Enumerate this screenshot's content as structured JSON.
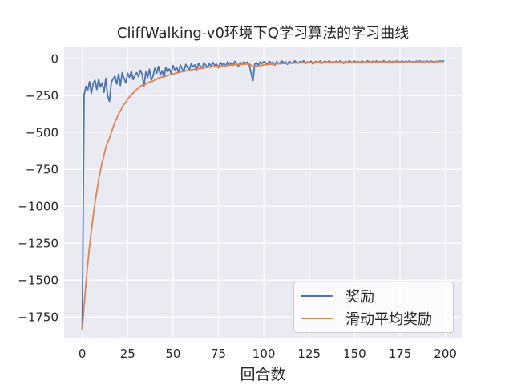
{
  "chart_data": {
    "type": "line",
    "title": "CliffWalking-v0环境下Q学习算法的学习曲线",
    "xlabel": "回合数",
    "ylabel": "",
    "grid": true,
    "legend_position": "lower right",
    "plot_background": "#eaeaf2",
    "grid_color": "#ffffff",
    "text_color": "#262626",
    "xlim": [
      -10,
      209
    ],
    "ylim": [
      -1890,
      77
    ],
    "x_ticks": [
      0,
      25,
      50,
      75,
      100,
      125,
      150,
      175,
      200
    ],
    "x_tick_labels": [
      "0",
      "25",
      "50",
      "75",
      "100",
      "125",
      "150",
      "175",
      "200"
    ],
    "y_ticks": [
      0,
      -250,
      -500,
      -750,
      -1000,
      -1250,
      -1500,
      -1750
    ],
    "y_tick_labels": [
      "0",
      "−250",
      "−500",
      "−750",
      "−1000",
      "−1250",
      "−1500",
      "−1750"
    ],
    "x_is_episode_index_starting_at_0": true,
    "series": [
      {
        "name": "奖励",
        "color": "#4c72b0",
        "values": [
          -1835,
          -247,
          -188,
          -215,
          -156,
          -235,
          -170,
          -146,
          -209,
          -139,
          -192,
          -163,
          -228,
          -133,
          -254,
          -290,
          -161,
          -136,
          -118,
          -172,
          -104,
          -182,
          -95,
          -134,
          -164,
          -99,
          -127,
          -86,
          -141,
          -112,
          -95,
          -122,
          -78,
          -106,
          -189,
          -90,
          -128,
          -72,
          -145,
          -117,
          -64,
          -98,
          -52,
          -110,
          -81,
          -126,
          -58,
          -89,
          -70,
          -102,
          -47,
          -76,
          -58,
          -92,
          -43,
          -68,
          -85,
          -39,
          -61,
          -74,
          -35,
          -55,
          -42,
          -78,
          -31,
          -49,
          -66,
          -28,
          -44,
          -58,
          -33,
          -52,
          -26,
          -47,
          -38,
          -62,
          -24,
          -41,
          -30,
          -54,
          -22,
          -37,
          -28,
          -45,
          -19,
          -34,
          -51,
          -25,
          -39,
          -21,
          -30,
          -24,
          -42,
          -98,
          -148,
          -36,
          -27,
          -45,
          -22,
          -33,
          -19,
          -28,
          -39,
          -17,
          -31,
          -24,
          -44,
          -20,
          -35,
          -26,
          -16,
          -29,
          -22,
          -38,
          -18,
          -27,
          -33,
          -15,
          -24,
          -30,
          -19,
          -26,
          -14,
          -32,
          -21,
          -28,
          -17,
          -36,
          -23,
          -19,
          -27,
          -15,
          -31,
          -22,
          -18,
          -26,
          -14,
          -29,
          -20,
          -24,
          -17,
          -28,
          -15,
          -23,
          -32,
          -18,
          -25,
          -14,
          -21,
          -27,
          -16,
          -24,
          -19,
          -29,
          -15,
          -22,
          -26,
          -14,
          -20,
          -25,
          -17,
          -23,
          -15,
          -27,
          -19,
          -24,
          -14,
          -21,
          -28,
          -16,
          -22,
          -18,
          -25,
          -15,
          -20,
          -26,
          -14,
          -23,
          -17,
          -21,
          -15,
          -24,
          -19,
          -27,
          -16,
          -22,
          -14,
          -25,
          -18,
          -20,
          -16,
          -23,
          -15,
          -21,
          -26,
          -17,
          -22,
          -14,
          -19,
          -15
        ]
      },
      {
        "name": "滑动平均奖励",
        "color": "#dd8452",
        "values": [
          -1835,
          -1676.2,
          -1527.4,
          -1396.2,
          -1272.2,
          -1168.4,
          -1068.6,
          -976.3,
          -899.6,
          -823.5,
          -760.4,
          -700.7,
          -653.4,
          -601.4,
          -566.7,
          -539,
          -501.2,
          -464.7,
          -430,
          -404.2,
          -374.2,
          -355,
          -329,
          -309.5,
          -294.9,
          -275.3,
          -260.5,
          -243,
          -232.8,
          -220.7,
          -208.1,
          -199.5,
          -187.4,
          -179.2,
          -180.2,
          -171.2,
          -166.9,
          -157.4,
          -156.2,
          -152.3,
          -143.5,
          -138.9,
          -130.2,
          -128.2,
          -123.5,
          -123.7,
          -117.1,
          -114.3,
          -109.9,
          -109.1,
          -102.9,
          -100.2,
          -95.9,
          -95.5,
          -90.3,
          -88.1,
          -87.8,
          -82.9,
          -80.7,
          -80,
          -75.5,
          -73.4,
          -70.3,
          -71.1,
          -67.1,
          -65.3,
          -65.4,
          -61.7,
          -59.9,
          -59.7,
          -57,
          -56.5,
          -53.5,
          -52.9,
          -51.4,
          -52.5,
          -49.7,
          -48.8,
          -46.9,
          -47.6,
          -45,
          -44.2,
          -42.6,
          -42.8,
          -40.4,
          -39.8,
          -40.9,
          -39.3,
          -39.3,
          -37.5,
          -36.8,
          -35.5,
          -36.2,
          -42.4,
          -53,
          -51.3,
          -48.9,
          -48.5,
          -45.9,
          -44.6,
          -42,
          -40.6,
          -40.4,
          -38.1,
          -37.4,
          -36.1,
          -36.9,
          -35.2,
          -35.2,
          -34.3,
          -32.5,
          -32.2,
          -31.2,
          -31.9,
          -30.5,
          -30.2,
          -30.5,
          -29,
          -28.5,
          -28.7,
          -27.7,
          -27.5,
          -26.2,
          -26.8,
          -26.2,
          -26.4,
          -25.5,
          -26.6,
          -26.2,
          -25.5,
          -25.7,
          -24.6,
          -25.2,
          -24.9,
          -24.2,
          -24.4,
          -23.4,
          -24,
          -23.6,
          -23.6,
          -22.9,
          -23.4,
          -22.6,
          -22.6,
          -23.5,
          -23,
          -23.2,
          -22.3,
          -22.2,
          -22.7,
          -22,
          -22.2,
          -21.9,
          -22.6,
          -21.8,
          -21.8,
          -22.2,
          -21.4,
          -21.3,
          -21.7,
          -21.2,
          -21.4,
          -20.8,
          -21.4,
          -21.2,
          -21.5,
          -20.8,
          -20.8,
          -21.5,
          -21,
          -21.1,
          -20.8,
          -21.2,
          -20.6,
          -20.5,
          -21.1,
          -20.4,
          -20.7,
          -20.3,
          -20.4,
          -19.9,
          -20.3,
          -20.2,
          -20.9,
          -20.4,
          -20.6,
          -19.9,
          -20.4,
          -20.2,
          -20.2,
          -19.8,
          -20.1,
          -19.6,
          -19.7,
          -20.3,
          -20,
          -20.2,
          -19.6,
          -19.5,
          -19.1
        ]
      }
    ]
  },
  "legend": {
    "items": [
      {
        "label": "奖励",
        "color": "#4c72b0"
      },
      {
        "label": "滑动平均奖励",
        "color": "#dd8452"
      }
    ]
  }
}
